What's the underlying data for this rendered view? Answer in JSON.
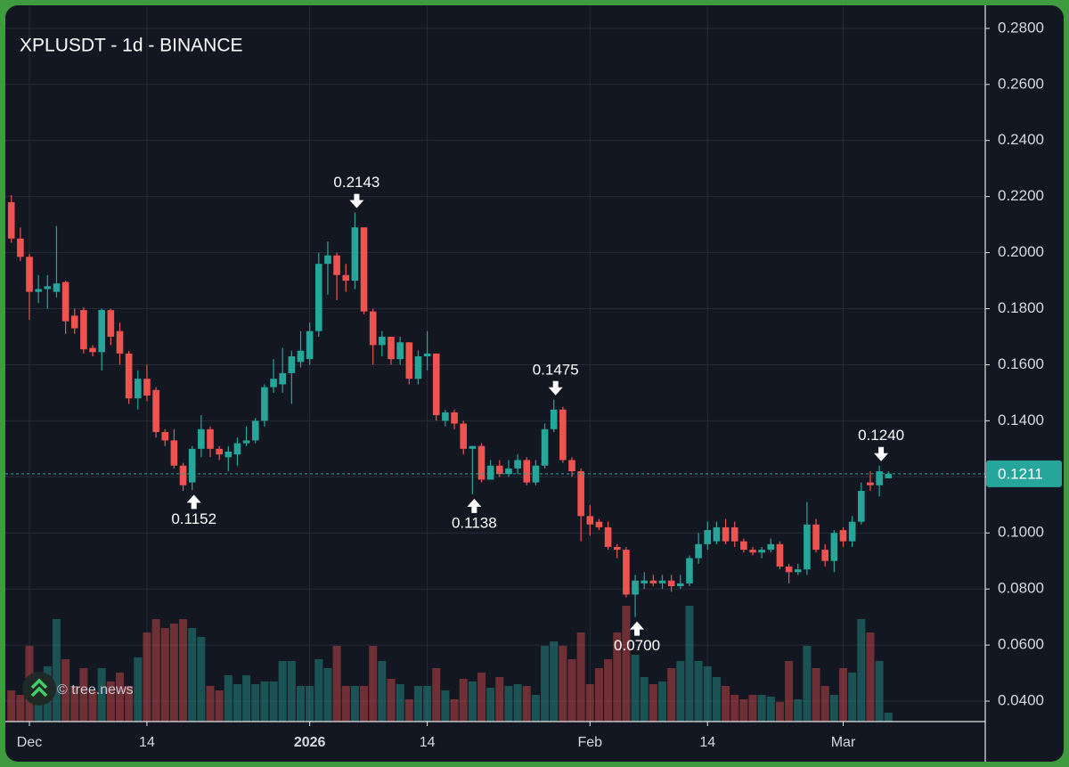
{
  "chart_data": {
    "type": "candlestick",
    "title": "XPLUSDT - 1d - BINANCE",
    "watermark": "© tree.news",
    "categories": [
      null,
      null,
      "Dec",
      null,
      null,
      null,
      null,
      null,
      null,
      null,
      null,
      null,
      null,
      null,
      null,
      "14",
      null,
      null,
      null,
      null,
      null,
      null,
      null,
      null,
      null,
      null,
      null,
      null,
      null,
      null,
      null,
      null,
      null,
      "2026",
      null,
      null,
      null,
      null,
      null,
      null,
      null,
      null,
      null,
      null,
      null,
      null,
      "14",
      null,
      null,
      null,
      null,
      null,
      null,
      null,
      null,
      null,
      null,
      null,
      null,
      null,
      null,
      null,
      null,
      null,
      "Feb",
      null,
      null,
      null,
      null,
      null,
      null,
      null,
      null,
      null,
      null,
      null,
      null,
      "14",
      null,
      null,
      null,
      null,
      null,
      null,
      null,
      null,
      null,
      null,
      null,
      null,
      null,
      null,
      "Mar",
      null,
      null,
      null,
      null,
      null
    ],
    "open": [
      0.218,
      0.205,
      0.1985,
      0.186,
      0.187,
      0.186,
      0.1895,
      0.1775,
      0.1795,
      0.166,
      0.1645,
      0.1795,
      0.172,
      0.164,
      0.148,
      0.155,
      0.151,
      0.136,
      0.133,
      0.124,
      0.118,
      0.13,
      0.137,
      0.13,
      0.127,
      0.128,
      0.132,
      0.133,
      0.14,
      0.152,
      0.153,
      0.157,
      0.161,
      0.162,
      0.172,
      0.196,
      0.199,
      0.192,
      0.19,
      0.209,
      0.179,
      0.167,
      0.17,
      0.162,
      0.168,
      0.155,
      0.163,
      0.164,
      0.14,
      0.143,
      0.139,
      0.13,
      0.131,
      0.119,
      0.124,
      0.121,
      0.123,
      0.126,
      0.118,
      0.124,
      0.137,
      0.144,
      0.126,
      0.122,
      0.106,
      0.104,
      0.102,
      0.095,
      0.094,
      0.078,
      0.082,
      0.083,
      0.082,
      0.083,
      0.081,
      0.082,
      0.091,
      0.096,
      0.097,
      0.102,
      0.102,
      0.097,
      0.094,
      0.093,
      0.094,
      0.096,
      0.088,
      0.086,
      0.087,
      0.103,
      0.094,
      0.09,
      0.101,
      0.097,
      0.104,
      0.118,
      0.117,
      0.1195
    ],
    "high": [
      0.2205,
      0.209,
      0.1995,
      0.192,
      0.192,
      0.2095,
      0.19,
      0.18,
      0.1805,
      0.167,
      0.18,
      0.18,
      0.175,
      0.165,
      0.158,
      0.16,
      0.152,
      0.137,
      0.137,
      0.125,
      0.131,
      0.142,
      0.138,
      0.131,
      0.131,
      0.134,
      0.138,
      0.141,
      0.153,
      0.162,
      0.166,
      0.165,
      0.172,
      0.175,
      0.2,
      0.204,
      0.2,
      0.196,
      0.2143,
      0.209,
      0.18,
      0.172,
      0.17,
      0.17,
      0.168,
      0.165,
      0.172,
      0.164,
      0.144,
      0.144,
      0.14,
      0.131,
      0.132,
      0.126,
      0.126,
      0.126,
      0.128,
      0.127,
      0.126,
      0.139,
      0.1475,
      0.145,
      0.127,
      0.123,
      0.11,
      0.105,
      0.104,
      0.096,
      0.095,
      0.085,
      0.086,
      0.085,
      0.085,
      0.085,
      0.085,
      0.092,
      0.1,
      0.104,
      0.104,
      0.105,
      0.104,
      0.098,
      0.095,
      0.095,
      0.098,
      0.097,
      0.089,
      0.089,
      0.111,
      0.105,
      0.096,
      0.101,
      0.102,
      0.106,
      0.118,
      0.122,
      0.124,
      0.122
    ],
    "low": [
      0.2035,
      0.197,
      0.176,
      0.182,
      0.18,
      0.184,
      0.171,
      0.171,
      0.164,
      0.163,
      0.158,
      0.167,
      0.16,
      0.146,
      0.144,
      0.147,
      0.134,
      0.131,
      0.123,
      0.115,
      0.1152,
      0.127,
      0.127,
      0.126,
      0.122,
      0.124,
      0.131,
      0.132,
      0.138,
      0.15,
      0.15,
      0.146,
      0.159,
      0.16,
      0.17,
      0.185,
      0.183,
      0.186,
      0.187,
      0.178,
      0.16,
      0.163,
      0.16,
      0.16,
      0.153,
      0.153,
      0.158,
      0.14,
      0.138,
      0.137,
      0.128,
      0.1138,
      0.118,
      0.119,
      0.12,
      0.12,
      0.121,
      0.117,
      0.117,
      0.123,
      0.136,
      0.125,
      0.12,
      0.097,
      0.099,
      0.101,
      0.094,
      0.091,
      0.077,
      0.07,
      0.08,
      0.081,
      0.08,
      0.079,
      0.08,
      0.081,
      0.089,
      0.094,
      0.096,
      0.096,
      0.095,
      0.093,
      0.092,
      0.091,
      0.093,
      0.087,
      0.082,
      0.085,
      0.085,
      0.093,
      0.088,
      0.086,
      0.095,
      0.095,
      0.103,
      0.115,
      0.113,
      0.1195
    ],
    "close": [
      0.205,
      0.1985,
      0.186,
      0.187,
      0.188,
      0.189,
      0.1755,
      0.173,
      0.1655,
      0.1645,
      0.1795,
      0.17,
      0.164,
      0.148,
      0.155,
      0.149,
      0.136,
      0.133,
      0.124,
      0.117,
      0.13,
      0.137,
      0.13,
      0.128,
      0.129,
      0.132,
      0.133,
      0.14,
      0.152,
      0.155,
      0.157,
      0.163,
      0.165,
      0.172,
      0.196,
      0.199,
      0.192,
      0.19,
      0.209,
      0.179,
      0.167,
      0.17,
      0.162,
      0.168,
      0.155,
      0.163,
      0.164,
      0.142,
      0.143,
      0.139,
      0.13,
      0.131,
      0.119,
      0.124,
      0.121,
      0.123,
      0.126,
      0.118,
      0.124,
      0.137,
      0.144,
      0.126,
      0.122,
      0.106,
      0.103,
      0.102,
      0.095,
      0.094,
      0.078,
      0.083,
      0.083,
      0.082,
      0.083,
      0.081,
      0.082,
      0.091,
      0.096,
      0.101,
      0.102,
      0.097,
      0.097,
      0.094,
      0.093,
      0.094,
      0.096,
      0.088,
      0.086,
      0.087,
      0.103,
      0.094,
      0.09,
      0.1,
      0.097,
      0.104,
      0.115,
      0.117,
      0.122,
      0.1211
    ],
    "volume": [
      35,
      30,
      85,
      25,
      62,
      115,
      70,
      40,
      60,
      35,
      60,
      45,
      55,
      40,
      72,
      100,
      115,
      105,
      110,
      115,
      105,
      95,
      40,
      35,
      52,
      42,
      52,
      42,
      45,
      45,
      68,
      68,
      40,
      40,
      70,
      60,
      85,
      40,
      40,
      40,
      85,
      68,
      48,
      42,
      25,
      40,
      40,
      60,
      35,
      25,
      48,
      45,
      55,
      38,
      50,
      40,
      42,
      40,
      30,
      85,
      90,
      85,
      70,
      100,
      42,
      60,
      70,
      100,
      130,
      75,
      50,
      42,
      45,
      60,
      68,
      130,
      68,
      62,
      50,
      40,
      30,
      25,
      30,
      30,
      28,
      22,
      68,
      25,
      85,
      60,
      40,
      30,
      60,
      55,
      115,
      100,
      68,
      10
    ],
    "high_value_labels": [
      null,
      null,
      null,
      null,
      null,
      null,
      null,
      null,
      null,
      null,
      null,
      null,
      null,
      null,
      null,
      null,
      null,
      null,
      null,
      null,
      null,
      null,
      null,
      null,
      null,
      null,
      null,
      null,
      null,
      null,
      null,
      null,
      null,
      null,
      null,
      null,
      null,
      null,
      "0.2143",
      null,
      null,
      null,
      null,
      null,
      null,
      null,
      null,
      null,
      null,
      null,
      null,
      null,
      null,
      null,
      null,
      null,
      null,
      null,
      null,
      null,
      "0.1475",
      null,
      null,
      null,
      null,
      null,
      null,
      null,
      null,
      null,
      null,
      null,
      null,
      null,
      null,
      null,
      null,
      null,
      null,
      null,
      null,
      null,
      null,
      null,
      null,
      null,
      null,
      null,
      null,
      null,
      null,
      null,
      null,
      null,
      null,
      null,
      "0.1240",
      null
    ],
    "low_value_labels": [
      null,
      null,
      null,
      null,
      null,
      null,
      null,
      null,
      null,
      null,
      null,
      null,
      null,
      null,
      null,
      null,
      null,
      null,
      null,
      null,
      "0.1152",
      null,
      null,
      null,
      null,
      null,
      null,
      null,
      null,
      null,
      null,
      null,
      null,
      null,
      null,
      null,
      null,
      null,
      null,
      null,
      null,
      null,
      null,
      null,
      null,
      null,
      null,
      null,
      null,
      null,
      null,
      "0.1138",
      null,
      null,
      null,
      null,
      null,
      null,
      null,
      null,
      null,
      null,
      null,
      null,
      null,
      null,
      null,
      null,
      null,
      "0.0700",
      null,
      null,
      null,
      null,
      null,
      null,
      null,
      null,
      null,
      null,
      null,
      null,
      null,
      null,
      null,
      null,
      null,
      null,
      null,
      null,
      null,
      null,
      null,
      null,
      null,
      null,
      null,
      null
    ],
    "last_price_label": "0.1211",
    "ylim": [
      0.0327,
      0.2879
    ],
    "yticks": [
      {
        "value": 0.04,
        "label": "0.0400"
      },
      {
        "value": 0.06,
        "label": "0.0600"
      },
      {
        "value": 0.08,
        "label": "0.0800"
      },
      {
        "value": 0.1,
        "label": "0.1000"
      },
      {
        "value": 0.12,
        "label": "0.1200"
      },
      {
        "value": 0.14,
        "label": "0.1400"
      },
      {
        "value": 0.16,
        "label": "0.1600"
      },
      {
        "value": 0.18,
        "label": "0.1800"
      },
      {
        "value": 0.2,
        "label": "0.2000"
      },
      {
        "value": 0.22,
        "label": "0.2200"
      },
      {
        "value": 0.24,
        "label": "0.2400"
      },
      {
        "value": 0.26,
        "label": "0.2600"
      },
      {
        "value": 0.28,
        "label": "0.2800"
      }
    ],
    "grid": true,
    "up_color": "#26a69a",
    "down_color": "#ef5350"
  }
}
